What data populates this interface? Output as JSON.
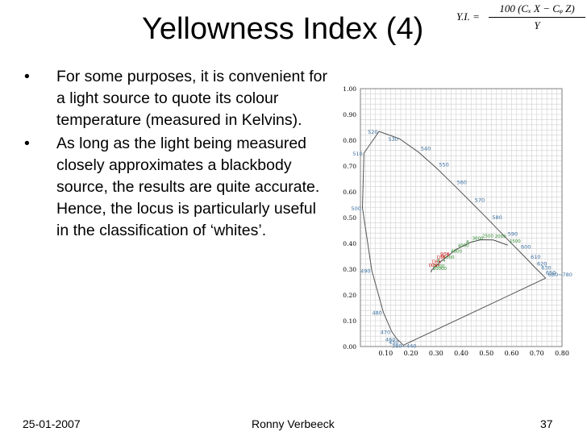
{
  "slide": {
    "title": "Yellowness Index (4)",
    "formula": {
      "lhs": "Y.I. =",
      "numerator": "100 (Cₓ X − Cᵩ Z)",
      "denominator": "Y"
    },
    "bullets": [
      "For some purposes, it is convenient for a light source to quote its colour temperature (measured in Kelvins).",
      "As long as the light being measured closely approximates a blackbody source, the results are quite accurate. Hence, the locus is particularly useful in the classification of ‘whites’."
    ],
    "bullet_symbol": "•",
    "footer": {
      "date": "25-01-2007",
      "author": "Ronny Verbeeck",
      "page": "37"
    }
  },
  "chart_data": {
    "type": "scatter",
    "title": "",
    "xlabel": "",
    "ylabel": "",
    "xlim": [
      0,
      0.8
    ],
    "ylim": [
      0,
      1.0
    ],
    "x_ticks": [
      "0.10",
      "0.20",
      "0.30",
      "0.40",
      "0.50",
      "0.60",
      "0.70",
      "0.80"
    ],
    "y_ticks": [
      "1.00",
      "0.90",
      "0.80",
      "0.70",
      "0.60",
      "0.50",
      "0.40",
      "0.30",
      "0.20",
      "0.10",
      "0.00"
    ],
    "grid": true,
    "series": [
      {
        "kind": "spectral-locus",
        "color": "#555555",
        "points": [
          {
            "label": "380~440",
            "x": 0.17,
            "y": 0.005
          },
          {
            "label": "470",
            "x": 0.124,
            "y": 0.058
          },
          {
            "label": "460",
            "x": 0.144,
            "y": 0.03
          },
          {
            "label": "450",
            "x": 0.157,
            "y": 0.018
          },
          {
            "label": "480",
            "x": 0.091,
            "y": 0.133
          },
          {
            "label": "490",
            "x": 0.045,
            "y": 0.295
          },
          {
            "label": "500",
            "x": 0.008,
            "y": 0.538
          },
          {
            "label": "510",
            "x": 0.014,
            "y": 0.75
          },
          {
            "label": "520",
            "x": 0.074,
            "y": 0.834
          },
          {
            "label": "530",
            "x": 0.155,
            "y": 0.806
          },
          {
            "label": "540",
            "x": 0.23,
            "y": 0.754
          },
          {
            "label": "550",
            "x": 0.302,
            "y": 0.692
          },
          {
            "label": "560",
            "x": 0.373,
            "y": 0.624
          },
          {
            "label": "570",
            "x": 0.444,
            "y": 0.555
          },
          {
            "label": "580",
            "x": 0.513,
            "y": 0.487
          },
          {
            "label": "590",
            "x": 0.575,
            "y": 0.424
          },
          {
            "label": "600",
            "x": 0.627,
            "y": 0.373
          },
          {
            "label": "610",
            "x": 0.666,
            "y": 0.334
          },
          {
            "label": "620",
            "x": 0.691,
            "y": 0.308
          },
          {
            "label": "630",
            "x": 0.708,
            "y": 0.292
          },
          {
            "label": "650",
            "x": 0.726,
            "y": 0.274
          },
          {
            "label": "680~780",
            "x": 0.735,
            "y": 0.265
          }
        ]
      },
      {
        "kind": "planckian-locus",
        "color": "#444444",
        "points": [
          {
            "label": "10000",
            "x": 0.28,
            "y": 0.288
          },
          {
            "label": "9000",
            "x": 0.283,
            "y": 0.297
          },
          {
            "label": "6000",
            "x": 0.322,
            "y": 0.332
          },
          {
            "label": "4800",
            "x": 0.352,
            "y": 0.355
          },
          {
            "label": "4000",
            "x": 0.38,
            "y": 0.377
          },
          {
            "label": "3000",
            "x": 0.437,
            "y": 0.404
          },
          {
            "label": "2500",
            "x": 0.477,
            "y": 0.414
          },
          {
            "label": "2000",
            "x": 0.527,
            "y": 0.413
          },
          {
            "label": "1500",
            "x": 0.585,
            "y": 0.393
          }
        ]
      },
      {
        "kind": "illuminants",
        "points": [
          {
            "label": "A",
            "x": 0.448,
            "y": 0.407,
            "color": "#2a8a2a"
          },
          {
            "label": "B",
            "x": 0.348,
            "y": 0.352,
            "color": "#cc2222"
          },
          {
            "label": "C",
            "x": 0.31,
            "y": 0.316,
            "color": "#cc2222"
          },
          {
            "label": "D50",
            "x": 0.346,
            "y": 0.359,
            "color": "#cc2222"
          },
          {
            "label": "D55",
            "x": 0.332,
            "y": 0.347,
            "color": "#cc2222"
          },
          {
            "label": "D65",
            "x": 0.313,
            "y": 0.329,
            "color": "#cc2222"
          },
          {
            "label": "D75",
            "x": 0.299,
            "y": 0.315,
            "color": "#cc2222"
          },
          {
            "label": "E",
            "x": 0.333,
            "y": 0.333,
            "color": "#2a8a2a"
          }
        ]
      }
    ]
  }
}
